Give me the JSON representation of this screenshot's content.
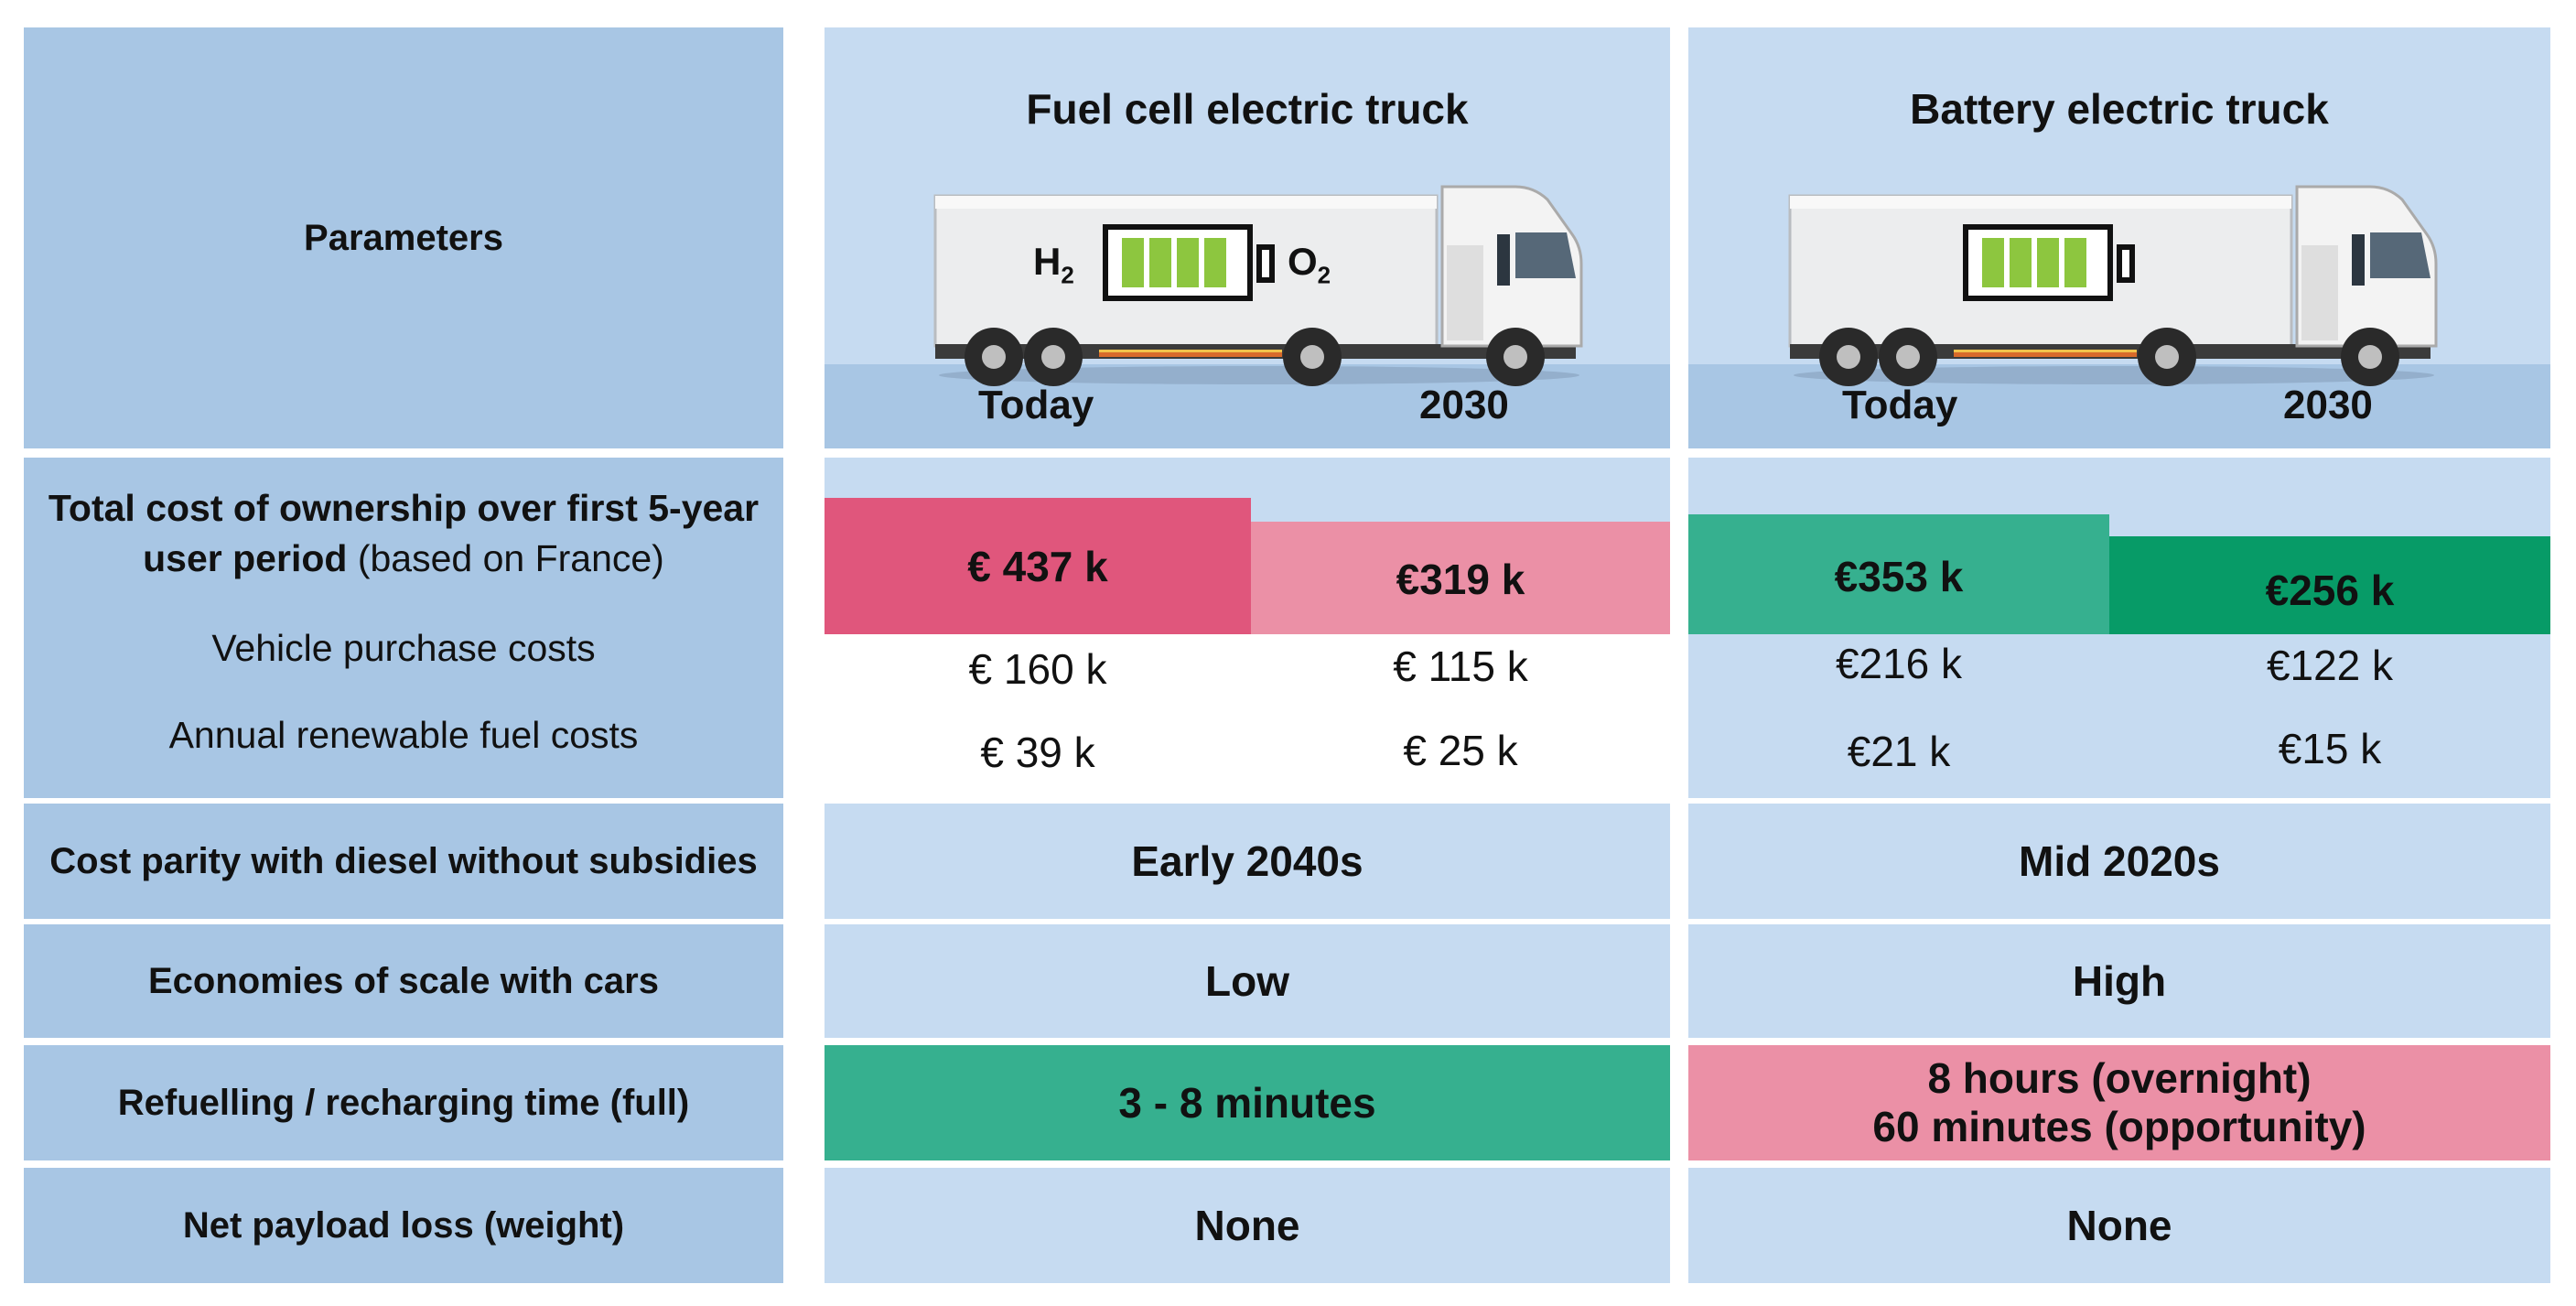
{
  "header": {
    "parameters_label": "Parameters",
    "fcev": {
      "title": "Fuel cell electric truck",
      "h2": "H",
      "h2_sub": "2",
      "o2": "O",
      "o2_sub": "2",
      "today": "Today",
      "year": "2030"
    },
    "bev": {
      "title": "Battery electric truck",
      "today": "Today",
      "year": "2030"
    }
  },
  "tco": {
    "label_bold": "Total cost of ownership  over first 5-year user period",
    "label_normal": "(based on France)",
    "fcev_today": "€ 437 k",
    "fcev_2030": "€319 k",
    "bev_today": "€353 k",
    "bev_2030": "€256 k"
  },
  "purchase": {
    "label": "Vehicle purchase costs",
    "fcev_today": "€ 160 k",
    "fcev_2030": "€ 115 k",
    "bev_today": "€216 k",
    "bev_2030": "€122 k"
  },
  "fuel": {
    "label": "Annual renewable fuel costs",
    "fcev_today": "€ 39  k",
    "fcev_2030": "€ 25 k",
    "bev_today": "€21 k",
    "bev_2030": "€15 k"
  },
  "parity": {
    "label": "Cost parity with diesel without subsidies",
    "fcev": "Early 2040s",
    "bev": "Mid 2020s"
  },
  "scale": {
    "label": "Economies of scale with cars",
    "fcev": "Low",
    "bev": "High"
  },
  "refuel": {
    "label": "Refuelling / recharging time (full)",
    "fcev": "3 - 8 minutes",
    "bev_line1": "8 hours (overnight)",
    "bev_line2": "60 minutes (opportunity)"
  },
  "payload": {
    "label": "Net payload loss (weight)",
    "fcev": "None",
    "bev": "None"
  },
  "colors": {
    "dark_blue": "#a8c6e4",
    "light_blue": "#c6dbf1",
    "pink_strong": "#e0567c",
    "pink_light": "#eb90a6",
    "teal": "#36b08f",
    "green_strong": "#079b67",
    "battery_green": "#8dc63f"
  }
}
